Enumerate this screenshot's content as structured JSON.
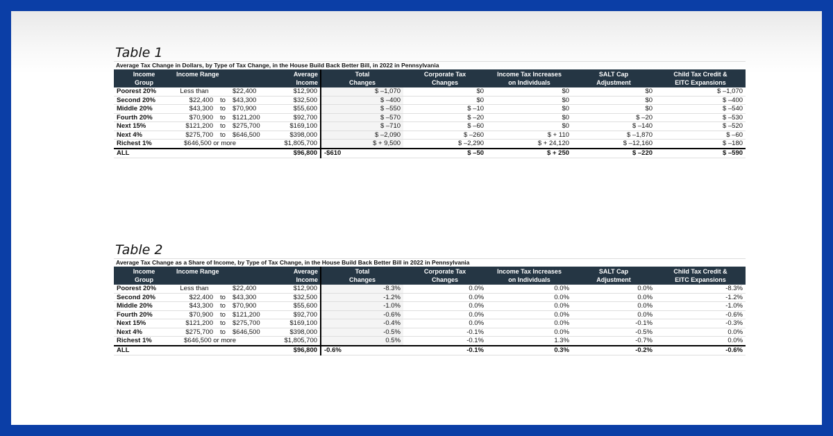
{
  "colors": {
    "frame": "#0b3ea6",
    "header_bg": "#253644"
  },
  "headers": {
    "group": [
      "Income",
      "Group"
    ],
    "range": "Income Range",
    "avg": [
      "Average",
      "Income"
    ],
    "total": [
      "Total",
      "Changes"
    ],
    "corp": [
      "Corporate Tax",
      "Changes"
    ],
    "indiv": [
      "Income Tax Increases",
      "on Individuals"
    ],
    "salt": [
      "SALT Cap",
      "Adjustment"
    ],
    "ctc": [
      "Child Tax Credit &",
      "EITC Expansions"
    ]
  },
  "tables": [
    {
      "label": "Table 1",
      "subtitle": "Average Tax Change in Dollars, by Type of Tax Change, in the House Build Back Better Bill, in 2022 in Pennsylvania",
      "rows": [
        {
          "group": "Poorest 20%",
          "from": "Less than",
          "sep": "",
          "to": "$22,400",
          "avg": "$12,900",
          "total": "$ –1,070",
          "corp": "$0",
          "indiv": "$0",
          "salt": "$0",
          "ctc": "$ –1,070"
        },
        {
          "group": "Second 20%",
          "from": "$22,400",
          "sep": "to",
          "to": "$43,300",
          "avg": "$32,500",
          "total": "$ –400",
          "corp": "$0",
          "indiv": "$0",
          "salt": "$0",
          "ctc": "$ –400"
        },
        {
          "group": "Middle 20%",
          "from": "$43,300",
          "sep": "to",
          "to": "$70,900",
          "avg": "$55,600",
          "total": "$ –550",
          "corp": "$ –10",
          "indiv": "$0",
          "salt": "$0",
          "ctc": "$ –540"
        },
        {
          "group": "Fourth 20%",
          "from": "$70,900",
          "sep": "to",
          "to": "$121,200",
          "avg": "$92,700",
          "total": "$ –570",
          "corp": "$ –20",
          "indiv": "$0",
          "salt": "$ –20",
          "ctc": "$ –530"
        },
        {
          "group": "Next 15%",
          "from": "$121,200",
          "sep": "to",
          "to": "$275,700",
          "avg": "$169,100",
          "total": "$ –710",
          "corp": "$ –60",
          "indiv": "$0",
          "salt": "$ –140",
          "ctc": "$ –520"
        },
        {
          "group": "Next 4%",
          "from": "$275,700",
          "sep": "to",
          "to": "$646,500",
          "avg": "$398,000",
          "total": "$ –2,090",
          "corp": "$ –260",
          "indiv": "$ + 110",
          "salt": "$ –1,870",
          "ctc": "$ –60"
        },
        {
          "group": "Richest 1%",
          "from": "$646,500 or more",
          "sep": "",
          "to": "",
          "avg": "$1,805,700",
          "total": "$ + 9,500",
          "corp": "$ –2,290",
          "indiv": "$ + 24,120",
          "salt": "$ –12,160",
          "ctc": "$ –180"
        }
      ],
      "all": {
        "group": "ALL",
        "avg": "$96,800",
        "total": "-$610",
        "corp": "$ –50",
        "indiv": "$ + 250",
        "salt": "$ –220",
        "ctc": "$ –590"
      }
    },
    {
      "label": "Table 2",
      "subtitle": "Average Tax Change as a Share of Income, by Type of Tax Change, in the House Build Back Better Bill in 2022 in Pennsylvania",
      "rows": [
        {
          "group": "Poorest 20%",
          "from": "Less than",
          "sep": "",
          "to": "$22,400",
          "avg": "$12,900",
          "total": "-8.3%",
          "corp": "0.0%",
          "indiv": "0.0%",
          "salt": "0.0%",
          "ctc": "-8.3%"
        },
        {
          "group": "Second 20%",
          "from": "$22,400",
          "sep": "to",
          "to": "$43,300",
          "avg": "$32,500",
          "total": "-1.2%",
          "corp": "0.0%",
          "indiv": "0.0%",
          "salt": "0.0%",
          "ctc": "-1.2%"
        },
        {
          "group": "Middle 20%",
          "from": "$43,300",
          "sep": "to",
          "to": "$70,900",
          "avg": "$55,600",
          "total": "-1.0%",
          "corp": "0.0%",
          "indiv": "0.0%",
          "salt": "0.0%",
          "ctc": "-1.0%"
        },
        {
          "group": "Fourth 20%",
          "from": "$70,900",
          "sep": "to",
          "to": "$121,200",
          "avg": "$92,700",
          "total": "-0.6%",
          "corp": "0.0%",
          "indiv": "0.0%",
          "salt": "0.0%",
          "ctc": "-0.6%"
        },
        {
          "group": "Next 15%",
          "from": "$121,200",
          "sep": "to",
          "to": "$275,700",
          "avg": "$169,100",
          "total": "-0.4%",
          "corp": "0.0%",
          "indiv": "0.0%",
          "salt": "-0.1%",
          "ctc": "-0.3%"
        },
        {
          "group": "Next 4%",
          "from": "$275,700",
          "sep": "to",
          "to": "$646,500",
          "avg": "$398,000",
          "total": "-0.5%",
          "corp": "-0.1%",
          "indiv": "0.0%",
          "salt": "-0.5%",
          "ctc": "0.0%"
        },
        {
          "group": "Richest 1%",
          "from": "$646,500 or more",
          "sep": "",
          "to": "",
          "avg": "$1,805,700",
          "total": "0.5%",
          "corp": "-0.1%",
          "indiv": "1.3%",
          "salt": "-0.7%",
          "ctc": "0.0%"
        }
      ],
      "all": {
        "group": "ALL",
        "avg": "$96,800",
        "total": "-0.6%",
        "corp": "-0.1%",
        "indiv": "0.3%",
        "salt": "-0.2%",
        "ctc": "-0.6%"
      }
    }
  ]
}
